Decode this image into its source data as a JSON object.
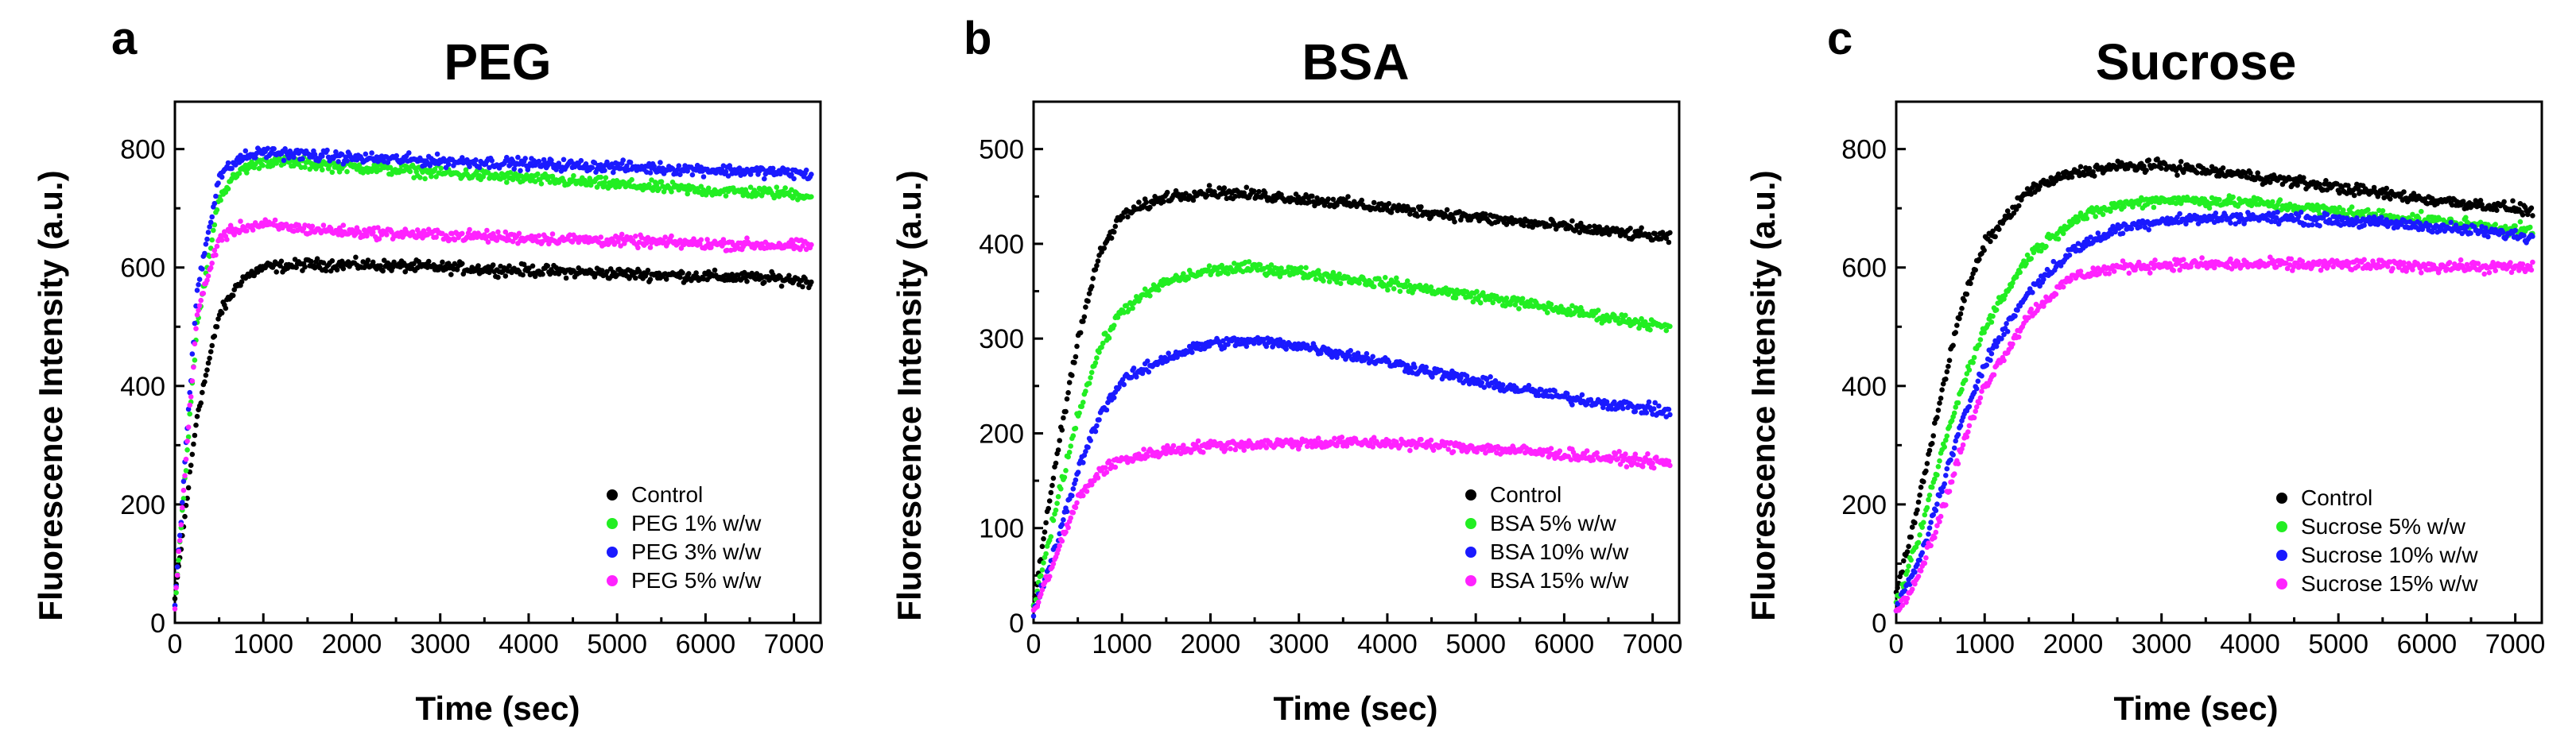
{
  "chart_data": [
    {
      "id": "a",
      "type": "scatter",
      "panel_letter": "a",
      "title": "PEG",
      "xlabel": "Time (sec)",
      "ylabel": "Fluorescence Intensity (a.u.)",
      "xlim": [
        0,
        7300
      ],
      "ylim": [
        0,
        880
      ],
      "xticks": [
        0,
        1000,
        2000,
        3000,
        4000,
        5000,
        6000,
        7000
      ],
      "yticks": [
        0,
        200,
        400,
        600,
        800
      ],
      "legend_position": "bottom-right",
      "series": [
        {
          "name": "Control",
          "color": "#000000",
          "points": [
            [
              0,
              40
            ],
            [
              250,
              350
            ],
            [
              500,
              520
            ],
            [
              750,
              580
            ],
            [
              1000,
              600
            ],
            [
              1500,
              605
            ],
            [
              2000,
              605
            ],
            [
              3000,
              600
            ],
            [
              4000,
              595
            ],
            [
              5000,
              590
            ],
            [
              6000,
              585
            ],
            [
              7000,
              580
            ],
            [
              7200,
              575
            ]
          ]
        },
        {
          "name": "PEG 1% w/w",
          "color": "#22ee22",
          "points": [
            [
              0,
              30
            ],
            [
              250,
              500
            ],
            [
              500,
              720
            ],
            [
              750,
              765
            ],
            [
              1000,
              780
            ],
            [
              1500,
              775
            ],
            [
              2000,
              770
            ],
            [
              3000,
              760
            ],
            [
              4000,
              750
            ],
            [
              5000,
              740
            ],
            [
              6000,
              730
            ],
            [
              7000,
              725
            ],
            [
              7200,
              720
            ]
          ]
        },
        {
          "name": "PEG 3% w/w",
          "color": "#1a1aff",
          "points": [
            [
              0,
              30
            ],
            [
              250,
              560
            ],
            [
              500,
              755
            ],
            [
              750,
              785
            ],
            [
              1000,
              795
            ],
            [
              1500,
              790
            ],
            [
              2000,
              785
            ],
            [
              3000,
              780
            ],
            [
              4000,
              775
            ],
            [
              5000,
              770
            ],
            [
              6000,
              765
            ],
            [
              7000,
              760
            ],
            [
              7200,
              755
            ]
          ]
        },
        {
          "name": "PEG 5% w/w",
          "color": "#ff22ff",
          "points": [
            [
              0,
              30
            ],
            [
              250,
              520
            ],
            [
              500,
              650
            ],
            [
              750,
              668
            ],
            [
              1000,
              672
            ],
            [
              1500,
              665
            ],
            [
              2000,
              660
            ],
            [
              3000,
              655
            ],
            [
              4000,
              650
            ],
            [
              5000,
              645
            ],
            [
              6000,
              640
            ],
            [
              7000,
              637
            ],
            [
              7200,
              635
            ]
          ]
        }
      ]
    },
    {
      "id": "b",
      "type": "scatter",
      "panel_letter": "b",
      "title": "BSA",
      "xlabel": "Time (sec)",
      "ylabel": "Fluorescence Intensity (a.u.)",
      "xlim": [
        0,
        7300
      ],
      "ylim": [
        0,
        550
      ],
      "xticks": [
        0,
        1000,
        2000,
        3000,
        4000,
        5000,
        6000,
        7000
      ],
      "yticks": [
        0,
        100,
        200,
        300,
        400,
        500
      ],
      "legend_position": "bottom-right",
      "series": [
        {
          "name": "Control",
          "color": "#000000",
          "points": [
            [
              0,
              20
            ],
            [
              250,
              170
            ],
            [
              500,
              300
            ],
            [
              750,
              390
            ],
            [
              1000,
              430
            ],
            [
              1500,
              450
            ],
            [
              2000,
              455
            ],
            [
              3000,
              448
            ],
            [
              4000,
              438
            ],
            [
              5000,
              428
            ],
            [
              6000,
              418
            ],
            [
              7000,
              408
            ],
            [
              7200,
              405
            ]
          ]
        },
        {
          "name": "BSA 5% w/w",
          "color": "#22ee22",
          "points": [
            [
              0,
              15
            ],
            [
              250,
              120
            ],
            [
              500,
              220
            ],
            [
              750,
              290
            ],
            [
              1000,
              330
            ],
            [
              1500,
              360
            ],
            [
              2000,
              372
            ],
            [
              2500,
              375
            ],
            [
              3000,
              370
            ],
            [
              4000,
              358
            ],
            [
              5000,
              345
            ],
            [
              6000,
              330
            ],
            [
              7000,
              315
            ],
            [
              7200,
              310
            ]
          ]
        },
        {
          "name": "BSA 10% w/w",
          "color": "#1a1aff",
          "points": [
            [
              0,
              10
            ],
            [
              250,
              80
            ],
            [
              500,
              160
            ],
            [
              750,
              220
            ],
            [
              1000,
              255
            ],
            [
              1500,
              280
            ],
            [
              2000,
              295
            ],
            [
              2500,
              297
            ],
            [
              3000,
              293
            ],
            [
              4000,
              275
            ],
            [
              5000,
              255
            ],
            [
              6000,
              238
            ],
            [
              7000,
              225
            ],
            [
              7200,
              222
            ]
          ]
        },
        {
          "name": "BSA 15% w/w",
          "color": "#ff22ff",
          "points": [
            [
              0,
              10
            ],
            [
              250,
              70
            ],
            [
              500,
              130
            ],
            [
              750,
              160
            ],
            [
              1000,
              172
            ],
            [
              1500,
              182
            ],
            [
              2000,
              187
            ],
            [
              3000,
              190
            ],
            [
              4000,
              190
            ],
            [
              5000,
              185
            ],
            [
              6000,
              178
            ],
            [
              7000,
              170
            ],
            [
              7200,
              168
            ]
          ]
        }
      ]
    },
    {
      "id": "c",
      "type": "scatter",
      "panel_letter": "c",
      "title": "Sucrose",
      "xlabel": "Time (sec)",
      "ylabel": "Fluorescence Intensity (a.u.)",
      "xlim": [
        0,
        7300
      ],
      "ylim": [
        0,
        880
      ],
      "xticks": [
        0,
        1000,
        2000,
        3000,
        4000,
        5000,
        6000,
        7000
      ],
      "yticks": [
        0,
        200,
        400,
        600,
        800
      ],
      "legend_position": "bottom-right",
      "series": [
        {
          "name": "Control",
          "color": "#000000",
          "points": [
            [
              0,
              50
            ],
            [
              250,
              200
            ],
            [
              500,
              380
            ],
            [
              750,
              540
            ],
            [
              1000,
              640
            ],
            [
              1500,
              730
            ],
            [
              2000,
              760
            ],
            [
              2500,
              770
            ],
            [
              3000,
              772
            ],
            [
              4000,
              755
            ],
            [
              5000,
              735
            ],
            [
              6000,
              715
            ],
            [
              7000,
              700
            ],
            [
              7200,
              695
            ]
          ]
        },
        {
          "name": "Sucrose 5% w/w",
          "color": "#22ee22",
          "points": [
            [
              0,
              30
            ],
            [
              250,
              140
            ],
            [
              500,
              280
            ],
            [
              750,
              400
            ],
            [
              1000,
              500
            ],
            [
              1500,
              620
            ],
            [
              2000,
              680
            ],
            [
              2500,
              705
            ],
            [
              3000,
              715
            ],
            [
              4000,
              710
            ],
            [
              5000,
              695
            ],
            [
              6000,
              680
            ],
            [
              7000,
              665
            ],
            [
              7200,
              660
            ]
          ]
        },
        {
          "name": "Sucrose 10% w/w",
          "color": "#1a1aff",
          "points": [
            [
              0,
              25
            ],
            [
              250,
              100
            ],
            [
              500,
              220
            ],
            [
              750,
              340
            ],
            [
              1000,
              440
            ],
            [
              1500,
              560
            ],
            [
              2000,
              630
            ],
            [
              2500,
              665
            ],
            [
              3000,
              680
            ],
            [
              4000,
              685
            ],
            [
              5000,
              680
            ],
            [
              6000,
              670
            ],
            [
              7000,
              655
            ],
            [
              7200,
              650
            ]
          ]
        },
        {
          "name": "Sucrose 15% w/w",
          "color": "#ff22ff",
          "points": [
            [
              0,
              20
            ],
            [
              250,
              80
            ],
            [
              500,
              180
            ],
            [
              750,
              300
            ],
            [
              1000,
              400
            ],
            [
              1500,
              520
            ],
            [
              2000,
              585
            ],
            [
              2500,
              600
            ],
            [
              3000,
              605
            ],
            [
              4000,
              605
            ],
            [
              5000,
              605
            ],
            [
              6000,
              602
            ],
            [
              7000,
              600
            ],
            [
              7200,
              598
            ]
          ]
        }
      ]
    }
  ]
}
